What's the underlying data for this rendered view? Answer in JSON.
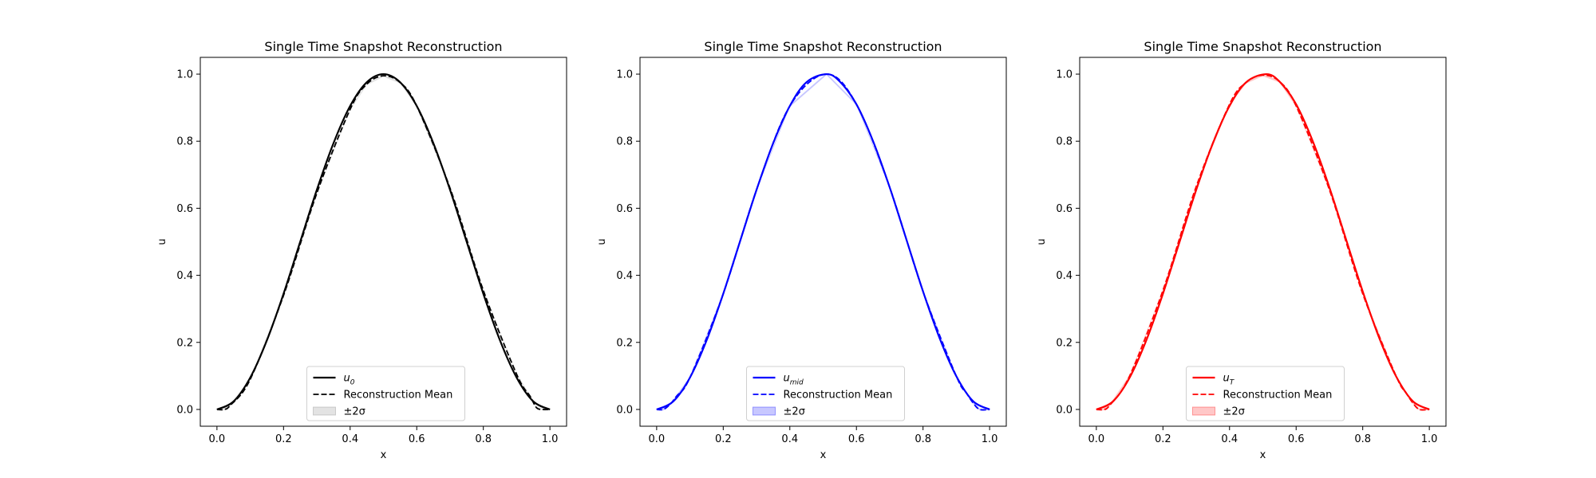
{
  "chart_data": [
    {
      "type": "line",
      "title": "Single Time Snapshot Reconstruction",
      "xlabel": "x",
      "ylabel": "u",
      "xlim": [
        -0.05,
        1.05
      ],
      "ylim": [
        -0.05,
        1.05
      ],
      "xticks": [
        "0.0",
        "0.2",
        "0.4",
        "0.6",
        "0.8",
        "1.0"
      ],
      "yticks": [
        "0.0",
        "0.2",
        "0.4",
        "0.6",
        "0.8",
        "1.0"
      ],
      "grid": false,
      "legend_position": "lower center",
      "color": "#000000",
      "band_color": "#808080",
      "peak_x": 0.5,
      "series": [
        {
          "name": "u",
          "subscript": "0",
          "style": "solid",
          "x": [
            0.0,
            0.05,
            0.1,
            0.15,
            0.2,
            0.25,
            0.3,
            0.35,
            0.4,
            0.45,
            0.5,
            0.55,
            0.6,
            0.65,
            0.7,
            0.75,
            0.8,
            0.85,
            0.9,
            0.95,
            1.0
          ],
          "y": [
            0.0,
            0.024,
            0.095,
            0.206,
            0.345,
            0.5,
            0.655,
            0.794,
            0.905,
            0.976,
            1.0,
            0.976,
            0.905,
            0.794,
            0.655,
            0.5,
            0.345,
            0.206,
            0.095,
            0.024,
            0.0
          ]
        },
        {
          "name": "Reconstruction Mean",
          "style": "dashed",
          "x": [
            0.0,
            0.02,
            0.04,
            0.1,
            0.2,
            0.3,
            0.4,
            0.45,
            0.5,
            0.55,
            0.6,
            0.7,
            0.8,
            0.9,
            0.94,
            0.96,
            0.98,
            1.0
          ],
          "y": [
            0.0,
            0.0,
            0.012,
            0.09,
            0.34,
            0.645,
            0.895,
            0.97,
            0.995,
            0.975,
            0.905,
            0.66,
            0.355,
            0.105,
            0.04,
            0.005,
            0.0,
            0.0
          ]
        },
        {
          "name": "±2σ",
          "style": "band",
          "half_width": 0.003
        }
      ]
    },
    {
      "type": "line",
      "title": "Single Time Snapshot Reconstruction",
      "xlabel": "x",
      "ylabel": "u",
      "xlim": [
        -0.05,
        1.05
      ],
      "ylim": [
        -0.05,
        1.05
      ],
      "xticks": [
        "0.0",
        "0.2",
        "0.4",
        "0.6",
        "0.8",
        "1.0"
      ],
      "yticks": [
        "0.0",
        "0.2",
        "0.4",
        "0.6",
        "0.8",
        "1.0"
      ],
      "grid": false,
      "legend_position": "lower center",
      "color": "#0000ff",
      "band_color": "#0000ff",
      "peak_x": 0.51,
      "series": [
        {
          "name": "u",
          "subscript": "mid",
          "style": "solid",
          "x": [
            0.0,
            0.05,
            0.1,
            0.15,
            0.2,
            0.25,
            0.3,
            0.35,
            0.4,
            0.45,
            0.51,
            0.55,
            0.6,
            0.65,
            0.7,
            0.75,
            0.8,
            0.85,
            0.9,
            0.95,
            1.0
          ],
          "y": [
            0.0,
            0.024,
            0.095,
            0.206,
            0.345,
            0.5,
            0.655,
            0.794,
            0.905,
            0.976,
            1.0,
            0.978,
            0.91,
            0.8,
            0.662,
            0.507,
            0.352,
            0.212,
            0.099,
            0.025,
            0.0
          ]
        },
        {
          "name": "Reconstruction Mean",
          "style": "dashed",
          "x": [
            0.0,
            0.02,
            0.04,
            0.06,
            0.1,
            0.2,
            0.3,
            0.4,
            0.51,
            0.6,
            0.7,
            0.8,
            0.9,
            0.93,
            0.95,
            0.97,
            1.0
          ],
          "y": [
            0.0,
            0.0,
            0.015,
            0.04,
            0.095,
            0.345,
            0.655,
            0.905,
            1.0,
            0.91,
            0.662,
            0.352,
            0.099,
            0.05,
            0.02,
            0.0,
            0.0
          ]
        },
        {
          "name": "±2σ",
          "style": "band",
          "half_width": 0.003
        }
      ]
    },
    {
      "type": "line",
      "title": "Single Time Snapshot Reconstruction",
      "xlabel": "x",
      "ylabel": "u",
      "xlim": [
        -0.05,
        1.05
      ],
      "ylim": [
        -0.05,
        1.05
      ],
      "xticks": [
        "0.0",
        "0.2",
        "0.4",
        "0.6",
        "0.8",
        "1.0"
      ],
      "yticks": [
        "0.0",
        "0.2",
        "0.4",
        "0.6",
        "0.8",
        "1.0"
      ],
      "grid": false,
      "legend_position": "lower center",
      "color": "#ff0000",
      "band_color": "#ff0000",
      "peak_x": 0.51,
      "series": [
        {
          "name": "u",
          "subscript": "T",
          "style": "solid",
          "x": [
            0.0,
            0.05,
            0.1,
            0.15,
            0.2,
            0.25,
            0.3,
            0.35,
            0.4,
            0.45,
            0.51,
            0.55,
            0.6,
            0.65,
            0.7,
            0.75,
            0.8,
            0.85,
            0.9,
            0.95,
            1.0
          ],
          "y": [
            0.0,
            0.024,
            0.095,
            0.206,
            0.345,
            0.5,
            0.655,
            0.794,
            0.905,
            0.976,
            1.0,
            0.978,
            0.91,
            0.8,
            0.662,
            0.507,
            0.352,
            0.212,
            0.099,
            0.025,
            0.0
          ]
        },
        {
          "name": "Reconstruction Mean",
          "style": "dashed",
          "x": [
            0.0,
            0.02,
            0.04,
            0.1,
            0.2,
            0.3,
            0.4,
            0.45,
            0.5,
            0.55,
            0.6,
            0.7,
            0.8,
            0.9,
            0.93,
            0.95,
            0.97,
            1.0
          ],
          "y": [
            0.0,
            0.0,
            0.012,
            0.1,
            0.355,
            0.665,
            0.91,
            0.975,
            0.997,
            0.978,
            0.905,
            0.655,
            0.345,
            0.1,
            0.05,
            0.02,
            0.0,
            0.0
          ]
        },
        {
          "name": "±2σ",
          "style": "band",
          "half_width": 0.003
        }
      ]
    }
  ]
}
